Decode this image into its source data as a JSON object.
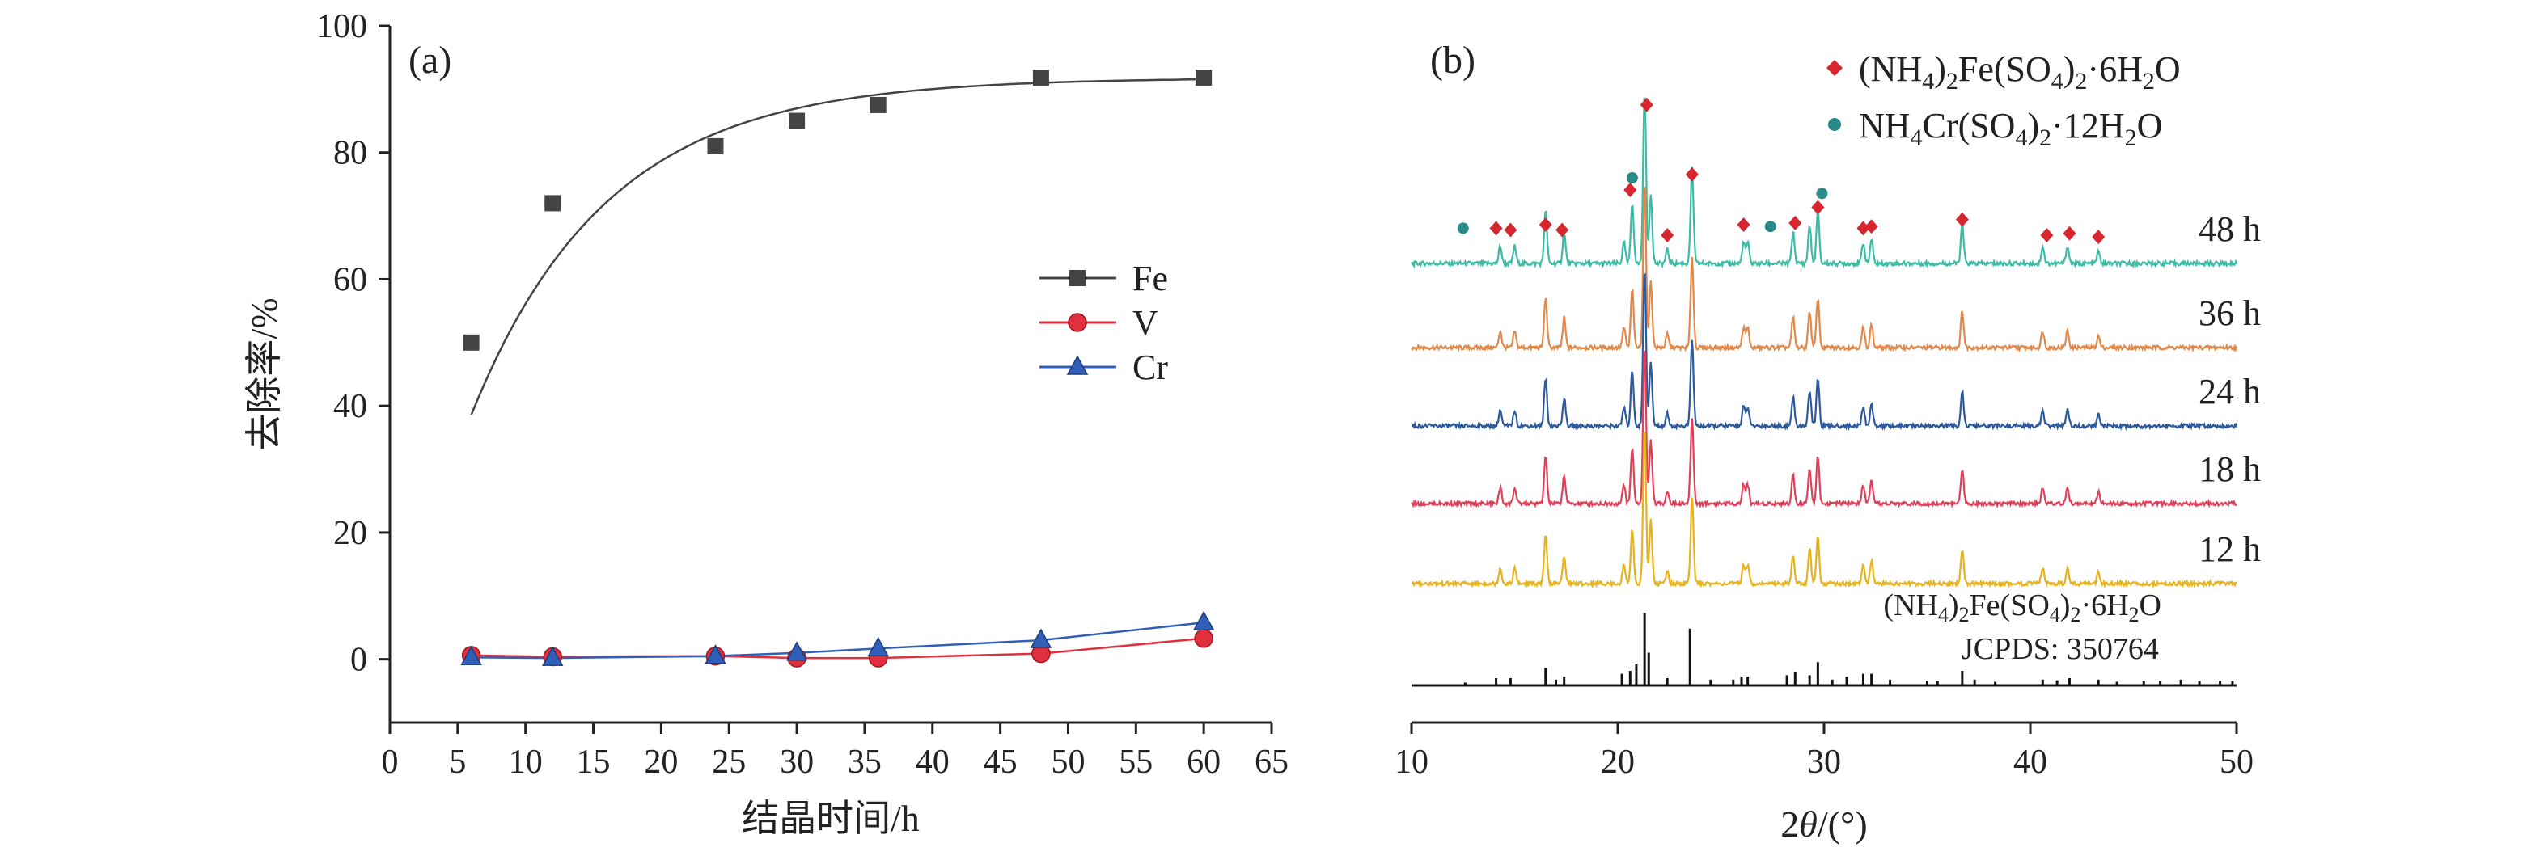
{
  "chart_data": [
    {
      "panel_label": "(a)",
      "type": "line",
      "xlabel": "结晶时间/h",
      "ylabel": "去除率/%",
      "xlim": [
        0,
        65
      ],
      "ylim": [
        -10,
        100
      ],
      "xticks": [
        "0",
        "5",
        "10",
        "15",
        "20",
        "25",
        "30",
        "35",
        "40",
        "45",
        "50",
        "55",
        "60",
        "65"
      ],
      "yticks": [
        "0",
        "20",
        "40",
        "60",
        "80",
        "100"
      ],
      "x": [
        6,
        12,
        24,
        30,
        36,
        48,
        60
      ],
      "series": [
        {
          "name": "Fe",
          "marker": "square",
          "color": "#444444",
          "values": [
            50,
            72,
            81,
            85,
            87.5,
            91.8,
            91.8
          ]
        },
        {
          "name": "V",
          "marker": "circle",
          "color": "#e0303f",
          "values": [
            0.6,
            0.4,
            0.5,
            0.2,
            0.2,
            0.9,
            3.3
          ]
        },
        {
          "name": "Cr",
          "marker": "triangle",
          "color": "#2f5fb8",
          "values": [
            0.3,
            0.2,
            0.5,
            1.0,
            1.7,
            3.0,
            5.8
          ]
        }
      ],
      "legend": "right-middle"
    },
    {
      "panel_label": "(b)",
      "type": "line",
      "xlabel": "2θ/(°)",
      "xlim": [
        10,
        50
      ],
      "xticks": [
        "10",
        "20",
        "30",
        "40",
        "50"
      ],
      "legend_items": [
        {
          "symbol": "♦",
          "color": "#d8262f",
          "label_html": "(NH<tspan font-size='30' dy='10'>4</tspan><tspan dy='-10'>)</tspan><tspan font-size='30' dy='10'>2</tspan><tspan dy='-10'>Fe(SO</tspan><tspan font-size='30' dy='10'>4</tspan><tspan dy='-10'>)</tspan><tspan font-size='30' dy='10'>2</tspan><tspan dy='-10'>·6H</tspan><tspan font-size='30' dy='10'>2</tspan><tspan dy='-10'>O</tspan>"
        },
        {
          "symbol": "●",
          "color": "#2a8a88",
          "label_html": "NH<tspan font-size='30' dy='10'>4</tspan><tspan dy='-10'>Cr(SO</tspan><tspan font-size='30' dy='10'>4</tspan><tspan dy='-10'>)</tspan><tspan font-size='30' dy='10'>2</tspan><tspan dy='-10'>·12H</tspan><tspan font-size='30' dy='10'>2</tspan><tspan dy='-10'>O</tspan>"
        }
      ],
      "series": [
        {
          "name": "48 h",
          "color": "#3dbca5"
        },
        {
          "name": "36 h",
          "color": "#e0894a"
        },
        {
          "name": "24 h",
          "color": "#2d5a9c"
        },
        {
          "name": "18 h",
          "color": "#e0405a"
        },
        {
          "name": "12 h",
          "color": "#e6b21d"
        }
      ],
      "peaks": [
        {
          "x": 14.3,
          "h": 0.1
        },
        {
          "x": 15.0,
          "h": 0.1
        },
        {
          "x": 16.5,
          "h": 0.3
        },
        {
          "x": 17.4,
          "h": 0.18
        },
        {
          "x": 20.3,
          "h": 0.12
        },
        {
          "x": 20.7,
          "h": 0.35
        },
        {
          "x": 21.3,
          "h": 1.0
        },
        {
          "x": 21.6,
          "h": 0.4
        },
        {
          "x": 22.4,
          "h": 0.08
        },
        {
          "x": 23.6,
          "h": 0.55
        },
        {
          "x": 26.1,
          "h": 0.12
        },
        {
          "x": 26.3,
          "h": 0.12
        },
        {
          "x": 28.5,
          "h": 0.18
        },
        {
          "x": 29.3,
          "h": 0.22
        },
        {
          "x": 29.7,
          "h": 0.3
        },
        {
          "x": 31.9,
          "h": 0.12
        },
        {
          "x": 32.3,
          "h": 0.14
        },
        {
          "x": 36.7,
          "h": 0.22
        },
        {
          "x": 40.6,
          "h": 0.1
        },
        {
          "x": 41.8,
          "h": 0.1
        },
        {
          "x": 43.3,
          "h": 0.07
        }
      ],
      "markers_48h": [
        {
          "x": 12.5,
          "symbol": "circle",
          "y": 0.11
        },
        {
          "x": 14.1,
          "symbol": "diamond",
          "y": 0.11
        },
        {
          "x": 14.8,
          "symbol": "diamond",
          "y": 0.1
        },
        {
          "x": 16.5,
          "symbol": "diamond",
          "y": 0.13
        },
        {
          "x": 17.3,
          "symbol": "diamond",
          "y": 0.1
        },
        {
          "x": 20.6,
          "symbol": "diamond",
          "y": 0.33
        },
        {
          "x": 20.7,
          "symbol": "circle",
          "y": 0.4
        },
        {
          "x": 21.4,
          "symbol": "diamond",
          "y": 0.82
        },
        {
          "x": 22.4,
          "symbol": "diamond",
          "y": 0.07
        },
        {
          "x": 23.6,
          "symbol": "diamond",
          "y": 0.42
        },
        {
          "x": 26.1,
          "symbol": "diamond",
          "y": 0.13
        },
        {
          "x": 27.4,
          "symbol": "circle",
          "y": 0.12
        },
        {
          "x": 28.6,
          "symbol": "diamond",
          "y": 0.14
        },
        {
          "x": 29.7,
          "symbol": "diamond",
          "y": 0.23
        },
        {
          "x": 29.9,
          "symbol": "circle",
          "y": 0.31
        },
        {
          "x": 31.9,
          "symbol": "diamond",
          "y": 0.11
        },
        {
          "x": 32.3,
          "symbol": "diamond",
          "y": 0.12
        },
        {
          "x": 36.7,
          "symbol": "diamond",
          "y": 0.16
        },
        {
          "x": 40.8,
          "symbol": "diamond",
          "y": 0.07
        },
        {
          "x": 41.9,
          "symbol": "diamond",
          "y": 0.08
        },
        {
          "x": 43.3,
          "symbol": "diamond",
          "y": 0.06
        }
      ],
      "reference": {
        "label_html": "(NH<tspan font-size='26' dy='8'>4</tspan><tspan dy='-8'>)</tspan><tspan font-size='26' dy='8'>2</tspan><tspan dy='-8'>Fe(SO</tspan><tspan font-size='26' dy='8'>4</tspan><tspan dy='-8'>)</tspan><tspan font-size='26' dy='8'>2</tspan><tspan dy='-8'>·6H</tspan><tspan font-size='26' dy='8'>2</tspan><tspan dy='-8'>O</tspan>",
        "card": "JCPDS: 350764",
        "lines": [
          {
            "x": 12.6,
            "h": 0.04
          },
          {
            "x": 14.1,
            "h": 0.1
          },
          {
            "x": 14.8,
            "h": 0.1
          },
          {
            "x": 16.5,
            "h": 0.24
          },
          {
            "x": 17.0,
            "h": 0.08
          },
          {
            "x": 17.4,
            "h": 0.12
          },
          {
            "x": 20.2,
            "h": 0.16
          },
          {
            "x": 20.6,
            "h": 0.2
          },
          {
            "x": 20.9,
            "h": 0.3
          },
          {
            "x": 21.3,
            "h": 1.0
          },
          {
            "x": 21.5,
            "h": 0.45
          },
          {
            "x": 22.4,
            "h": 0.1
          },
          {
            "x": 23.5,
            "h": 0.78
          },
          {
            "x": 24.5,
            "h": 0.08
          },
          {
            "x": 25.6,
            "h": 0.08
          },
          {
            "x": 26.0,
            "h": 0.12
          },
          {
            "x": 26.3,
            "h": 0.12
          },
          {
            "x": 28.2,
            "h": 0.14
          },
          {
            "x": 28.6,
            "h": 0.18
          },
          {
            "x": 29.3,
            "h": 0.14
          },
          {
            "x": 29.7,
            "h": 0.32
          },
          {
            "x": 30.4,
            "h": 0.08
          },
          {
            "x": 31.1,
            "h": 0.12
          },
          {
            "x": 31.9,
            "h": 0.16
          },
          {
            "x": 32.3,
            "h": 0.16
          },
          {
            "x": 33.2,
            "h": 0.08
          },
          {
            "x": 35.0,
            "h": 0.06
          },
          {
            "x": 35.5,
            "h": 0.06
          },
          {
            "x": 36.7,
            "h": 0.2
          },
          {
            "x": 37.3,
            "h": 0.08
          },
          {
            "x": 38.3,
            "h": 0.05
          },
          {
            "x": 40.6,
            "h": 0.08
          },
          {
            "x": 41.3,
            "h": 0.07
          },
          {
            "x": 41.9,
            "h": 0.1
          },
          {
            "x": 43.3,
            "h": 0.08
          },
          {
            "x": 44.2,
            "h": 0.05
          },
          {
            "x": 45.5,
            "h": 0.06
          },
          {
            "x": 46.3,
            "h": 0.06
          },
          {
            "x": 47.3,
            "h": 0.08
          },
          {
            "x": 48.2,
            "h": 0.06
          },
          {
            "x": 49.2,
            "h": 0.06
          },
          {
            "x": 49.8,
            "h": 0.06
          }
        ]
      }
    }
  ]
}
